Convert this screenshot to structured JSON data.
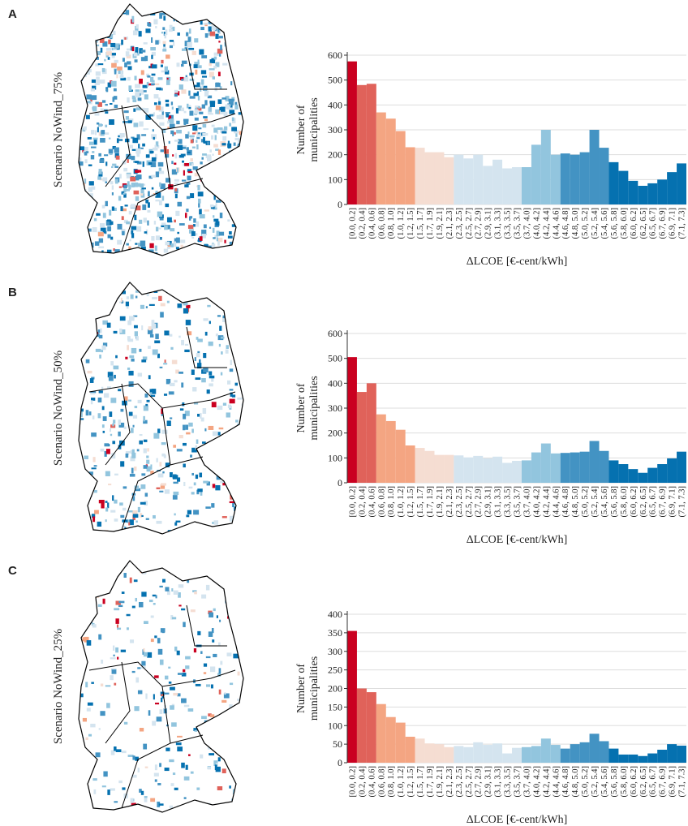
{
  "panels": [
    {
      "letter": "A",
      "scenario": "Scenario NoWind_75%"
    },
    {
      "letter": "B",
      "scenario": "Scenario NoWind_50%"
    },
    {
      "letter": "C",
      "scenario": "Scenario NoWind_25%"
    }
  ],
  "chart_data": [
    {
      "type": "bar",
      "categories": [
        "[0.0, 0.2]",
        "(0.2, 0.4]",
        "(0.4, 0.6]",
        "(0.6, 0.8]",
        "(0.8, 1.0]",
        "(1.0, 1.2]",
        "(1.2, 1.5]",
        "(1.5, 1.7]",
        "(1.7, 1.9]",
        "(1.9, 2.1]",
        "(2.1, 2.3]",
        "(2.3, 2.5]",
        "(2.5, 2.7]",
        "(2.7, 2.9]",
        "(2.9, 3.1]",
        "(3.1, 3.3]",
        "(3.3, 3.5]",
        "(3.5, 3.7]",
        "(3.7, 4.0]",
        "(4.0, 4.2]",
        "(4.2, 4.4]",
        "(4.4, 4.6]",
        "(4.6, 4.8]",
        "(4.8, 5.0]",
        "(5.0, 5.2]",
        "(5.2, 5.4]",
        "(5.4, 5.6]",
        "(5.6, 5.8]",
        "(5.8, 6.0]",
        "(6.0, 6.2]",
        "(6.2, 6.5]",
        "(6.5, 6.7]",
        "(6.7, 6.9]",
        "(6.9, 7.1]",
        "(7.1, 7.3]"
      ],
      "values": [
        575,
        480,
        485,
        370,
        345,
        295,
        230,
        228,
        210,
        210,
        190,
        200,
        185,
        200,
        155,
        180,
        145,
        150,
        150,
        240,
        300,
        200,
        205,
        200,
        210,
        300,
        228,
        170,
        135,
        95,
        75,
        85,
        100,
        130,
        165
      ],
      "colors": [
        "#ca0020",
        "#e0625a",
        "#e0625a",
        "#f4a582",
        "#f4a582",
        "#f4a582",
        "#f4a582",
        "#f5ddd2",
        "#f5ddd2",
        "#f5ddd2",
        "#f5ddd2",
        "#d4e4ef",
        "#d4e4ef",
        "#d4e4ef",
        "#d4e4ef",
        "#d4e4ef",
        "#d4e4ef",
        "#d4e4ef",
        "#92c5de",
        "#92c5de",
        "#92c5de",
        "#92c5de",
        "#4393c3",
        "#4393c3",
        "#4393c3",
        "#4393c3",
        "#4393c3",
        "#0571b0",
        "#0571b0",
        "#0571b0",
        "#0571b0",
        "#0571b0",
        "#0571b0",
        "#0571b0",
        "#0571b0"
      ],
      "ylabel": [
        "Number of",
        "municipalities"
      ],
      "xlabel": "ΔLCOE [€-cent/kWh]",
      "ylim": [
        0,
        600
      ],
      "yticks": [
        0,
        100,
        200,
        300,
        400,
        500,
        600
      ],
      "grid": true
    },
    {
      "type": "bar",
      "categories": [
        "[0.0, 0.2]",
        "(0.2, 0.4]",
        "(0.4, 0.6]",
        "(0.6, 0.8]",
        "(0.8, 1.0]",
        "(1.0, 1.2]",
        "(1.2, 1.5]",
        "(1.5, 1.7]",
        "(1.7, 1.9]",
        "(1.9, 2.1]",
        "(2.1, 2.3]",
        "(2.3, 2.5]",
        "(2.5, 2.7]",
        "(2.7, 2.9]",
        "(2.9, 3.1]",
        "(3.1, 3.3]",
        "(3.3, 3.5]",
        "(3.5, 3.7]",
        "(3.7, 4.0]",
        "(4.0, 4.2]",
        "(4.2, 4.4]",
        "(4.4, 4.6]",
        "(4.6, 4.8]",
        "(4.8, 5.0]",
        "(5.0, 5.2]",
        "(5.2, 5.4]",
        "(5.4, 5.6]",
        "(5.6, 5.8]",
        "(5.8, 6.0]",
        "(6.0, 6.2]",
        "(6.2, 6.5]",
        "(6.5, 6.7]",
        "(6.7, 6.9]",
        "(6.9, 7.1]",
        "(7.1, 7.3]"
      ],
      "values": [
        505,
        365,
        400,
        275,
        248,
        213,
        150,
        140,
        128,
        112,
        112,
        110,
        102,
        108,
        98,
        105,
        80,
        88,
        90,
        122,
        158,
        118,
        120,
        122,
        125,
        168,
        128,
        90,
        75,
        55,
        40,
        60,
        75,
        98,
        125
      ],
      "colors": [
        "#ca0020",
        "#e0625a",
        "#e0625a",
        "#f4a582",
        "#f4a582",
        "#f4a582",
        "#f4a582",
        "#f5ddd2",
        "#f5ddd2",
        "#f5ddd2",
        "#f5ddd2",
        "#d4e4ef",
        "#d4e4ef",
        "#d4e4ef",
        "#d4e4ef",
        "#d4e4ef",
        "#d4e4ef",
        "#d4e4ef",
        "#92c5de",
        "#92c5de",
        "#92c5de",
        "#92c5de",
        "#4393c3",
        "#4393c3",
        "#4393c3",
        "#4393c3",
        "#4393c3",
        "#0571b0",
        "#0571b0",
        "#0571b0",
        "#0571b0",
        "#0571b0",
        "#0571b0",
        "#0571b0",
        "#0571b0"
      ],
      "ylabel": [
        "Number of",
        "municipalities"
      ],
      "xlabel": "ΔLCOE [€-cent/kWh]",
      "ylim": [
        0,
        600
      ],
      "yticks": [
        0,
        100,
        200,
        300,
        400,
        500,
        600
      ],
      "grid": true
    },
    {
      "type": "bar",
      "categories": [
        "[0.0, 0.2]",
        "(0.2, 0.4]",
        "(0.4, 0.6]",
        "(0.6, 0.8]",
        "(0.8, 1.0]",
        "(1.0, 1.2]",
        "(1.2, 1.5]",
        "(1.5, 1.7]",
        "(1.7, 1.9]",
        "(1.9, 2.1]",
        "(2.1, 2.3]",
        "(2.3, 2.5]",
        "(2.5, 2.7]",
        "(2.7, 2.9]",
        "(2.9, 3.1]",
        "(3.1, 3.3]",
        "(3.3, 3.5]",
        "(3.5, 3.7]",
        "(3.7, 4.0]",
        "(4.0, 4.2]",
        "(4.2, 4.4]",
        "(4.4, 4.6]",
        "(4.6, 4.8]",
        "(4.8, 5.0]",
        "(5.0, 5.2]",
        "(5.2, 5.4]",
        "(5.4, 5.6]",
        "(5.6, 5.8]",
        "(5.8, 6.0]",
        "(6.0, 6.2]",
        "(6.2, 6.5]",
        "(6.5, 6.7]",
        "(6.7, 6.9]",
        "(6.9, 7.1]",
        "(7.1, 7.3]"
      ],
      "values": [
        355,
        200,
        190,
        158,
        123,
        108,
        70,
        65,
        52,
        50,
        42,
        45,
        42,
        55,
        48,
        52,
        25,
        40,
        42,
        45,
        65,
        48,
        38,
        50,
        55,
        78,
        58,
        38,
        22,
        22,
        18,
        25,
        35,
        50,
        46
      ],
      "colors": [
        "#ca0020",
        "#e0625a",
        "#e0625a",
        "#f4a582",
        "#f4a582",
        "#f4a582",
        "#f4a582",
        "#f5ddd2",
        "#f5ddd2",
        "#f5ddd2",
        "#f5ddd2",
        "#d4e4ef",
        "#d4e4ef",
        "#d4e4ef",
        "#d4e4ef",
        "#d4e4ef",
        "#d4e4ef",
        "#d4e4ef",
        "#92c5de",
        "#92c5de",
        "#92c5de",
        "#92c5de",
        "#4393c3",
        "#4393c3",
        "#4393c3",
        "#4393c3",
        "#4393c3",
        "#0571b0",
        "#0571b0",
        "#0571b0",
        "#0571b0",
        "#0571b0",
        "#0571b0",
        "#0571b0",
        "#0571b0"
      ],
      "ylabel": [
        "Number of",
        "municipalities"
      ],
      "xlabel": "ΔLCOE [€-cent/kWh]",
      "ylim": [
        0,
        400
      ],
      "yticks": [
        0,
        50,
        100,
        150,
        200,
        250,
        300,
        350,
        400
      ],
      "grid": true
    }
  ]
}
